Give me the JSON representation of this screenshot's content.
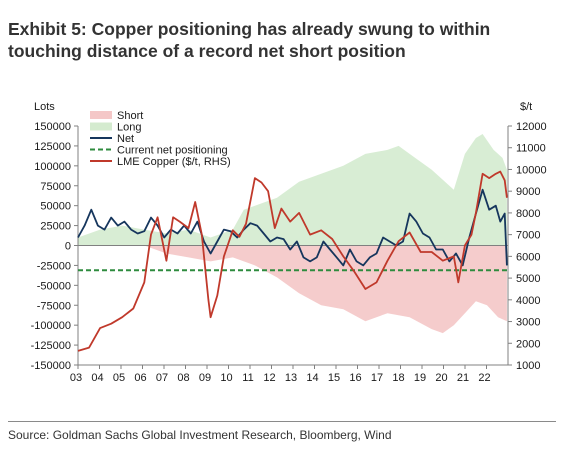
{
  "exhibit": {
    "title": "Exhibit 5: Copper positioning has already swung to within touching distance of a record net short position",
    "source": "Source: Goldman Sachs Global Investment Research, Bloomberg, Wind"
  },
  "chart_data": {
    "type": "line",
    "left_axis_label": "Lots",
    "right_axis_label": "$/t",
    "ylim": [
      -150000,
      150000
    ],
    "y2lim": [
      1000,
      12000
    ],
    "y_ticks": [
      "150000",
      "125000",
      "100000",
      "75000",
      "50000",
      "25000",
      "0",
      "-25000",
      "-50000",
      "-75000",
      "-100000",
      "-125000",
      "-150000"
    ],
    "y2_ticks": [
      "12000",
      "11000",
      "10000",
      "9000",
      "8000",
      "7000",
      "6000",
      "5000",
      "4000",
      "3000",
      "2000",
      "1000"
    ],
    "x_ticks": [
      "03",
      "04",
      "05",
      "06",
      "07",
      "08",
      "09",
      "10",
      "11",
      "12",
      "13",
      "14",
      "15",
      "16",
      "17",
      "18",
      "19",
      "20",
      "21",
      "22"
    ],
    "xlim": [
      2003.0,
      2022.45
    ],
    "legend_position": "top-left",
    "colors": {
      "short": "#f4c7c7",
      "long": "#d4ebcf",
      "net": "#16365d",
      "current": "#2e8b3e",
      "lme": "#c0392b",
      "axis": "#808080"
    },
    "series": [
      {
        "name": "Short",
        "axis": "left",
        "kind": "area",
        "x": [
          2003.0,
          2004.0,
          2005.0,
          2006.0,
          2006.5,
          2007.0,
          2008.0,
          2009.0,
          2010.0,
          2011.0,
          2012.0,
          2013.0,
          2014.0,
          2015.0,
          2016.0,
          2017.0,
          2018.0,
          2019.0,
          2019.5,
          2020.0,
          2020.5,
          2021.0,
          2021.5,
          2022.0,
          2022.4
        ],
        "values": [
          0,
          0,
          0,
          0,
          -5000,
          -10000,
          -15000,
          -20000,
          -15000,
          -25000,
          -40000,
          -60000,
          -75000,
          -80000,
          -95000,
          -85000,
          -90000,
          -105000,
          -110000,
          -100000,
          -85000,
          -70000,
          -75000,
          -90000,
          -95000
        ]
      },
      {
        "name": "Long",
        "axis": "left",
        "kind": "area",
        "x": [
          2003.0,
          2004.0,
          2005.0,
          2006.0,
          2007.0,
          2008.0,
          2009.0,
          2010.0,
          2010.5,
          2011.0,
          2012.0,
          2013.0,
          2014.0,
          2015.0,
          2016.0,
          2017.0,
          2017.5,
          2018.0,
          2019.0,
          2020.0,
          2020.5,
          2021.0,
          2021.3,
          2021.8,
          2022.2,
          2022.4
        ],
        "values": [
          10000,
          20000,
          25000,
          20000,
          15000,
          20000,
          10000,
          20000,
          45000,
          50000,
          60000,
          80000,
          90000,
          100000,
          115000,
          120000,
          125000,
          115000,
          95000,
          70000,
          115000,
          135000,
          140000,
          120000,
          110000,
          95000
        ]
      },
      {
        "name": "Net",
        "axis": "left",
        "kind": "line",
        "x": [
          2003.0,
          2003.3,
          2003.6,
          2003.9,
          2004.2,
          2004.5,
          2004.8,
          2005.1,
          2005.4,
          2005.7,
          2006.0,
          2006.3,
          2006.6,
          2006.9,
          2007.2,
          2007.5,
          2007.8,
          2008.1,
          2008.4,
          2008.7,
          2009.0,
          2009.3,
          2009.6,
          2009.9,
          2010.2,
          2010.5,
          2010.8,
          2011.1,
          2011.4,
          2011.7,
          2012.0,
          2012.3,
          2012.6,
          2012.9,
          2013.2,
          2013.5,
          2013.8,
          2014.1,
          2014.4,
          2014.7,
          2015.0,
          2015.3,
          2015.6,
          2015.9,
          2016.2,
          2016.5,
          2016.8,
          2017.1,
          2017.4,
          2017.7,
          2018.0,
          2018.3,
          2018.6,
          2018.9,
          2019.2,
          2019.5,
          2019.8,
          2020.1,
          2020.4,
          2020.7,
          2021.0,
          2021.3,
          2021.6,
          2021.9,
          2022.1,
          2022.3,
          2022.4
        ],
        "values": [
          10000,
          25000,
          45000,
          25000,
          20000,
          35000,
          25000,
          30000,
          20000,
          15000,
          18000,
          35000,
          25000,
          10000,
          20000,
          15000,
          25000,
          15000,
          30000,
          5000,
          -10000,
          5000,
          20000,
          18000,
          10000,
          20000,
          28000,
          25000,
          15000,
          5000,
          10000,
          8000,
          -5000,
          5000,
          -15000,
          -20000,
          -15000,
          5000,
          -5000,
          -15000,
          -25000,
          -5000,
          -20000,
          -25000,
          -15000,
          -10000,
          10000,
          5000,
          0,
          5000,
          40000,
          30000,
          15000,
          10000,
          -5000,
          -5000,
          -20000,
          -10000,
          -25000,
          10000,
          40000,
          70000,
          45000,
          50000,
          30000,
          40000,
          -25000
        ]
      },
      {
        "name": "Current net positioning",
        "axis": "left",
        "kind": "hline",
        "x": [
          2003.0,
          2022.45
        ],
        "values": [
          -31000,
          -31000
        ]
      },
      {
        "name": "LME Copper ($/t, RHS)",
        "axis": "right",
        "kind": "line",
        "x": [
          2003.0,
          2003.5,
          2004.0,
          2004.5,
          2005.0,
          2005.5,
          2006.0,
          2006.3,
          2006.6,
          2007.0,
          2007.3,
          2007.6,
          2008.0,
          2008.3,
          2008.6,
          2008.9,
          2009.0,
          2009.3,
          2009.6,
          2010.0,
          2010.3,
          2010.6,
          2011.0,
          2011.3,
          2011.6,
          2011.9,
          2012.2,
          2012.6,
          2013.0,
          2013.5,
          2014.0,
          2014.5,
          2015.0,
          2015.5,
          2016.0,
          2016.5,
          2017.0,
          2017.5,
          2018.0,
          2018.5,
          2019.0,
          2019.5,
          2020.0,
          2020.2,
          2020.5,
          2020.8,
          2021.0,
          2021.3,
          2021.6,
          2021.9,
          2022.1,
          2022.3,
          2022.4
        ],
        "values": [
          1650,
          1800,
          2700,
          2900,
          3200,
          3600,
          4800,
          7000,
          7800,
          5800,
          7800,
          7600,
          7300,
          8500,
          7000,
          4000,
          3200,
          4200,
          6000,
          7200,
          6900,
          7500,
          9600,
          9400,
          9000,
          7300,
          8200,
          7600,
          8000,
          7000,
          7200,
          6800,
          6000,
          5300,
          4500,
          4800,
          5800,
          6700,
          7100,
          6200,
          6200,
          5800,
          6000,
          4800,
          6500,
          7000,
          8000,
          9800,
          9600,
          9800,
          9900,
          9500,
          8700
        ]
      }
    ]
  }
}
